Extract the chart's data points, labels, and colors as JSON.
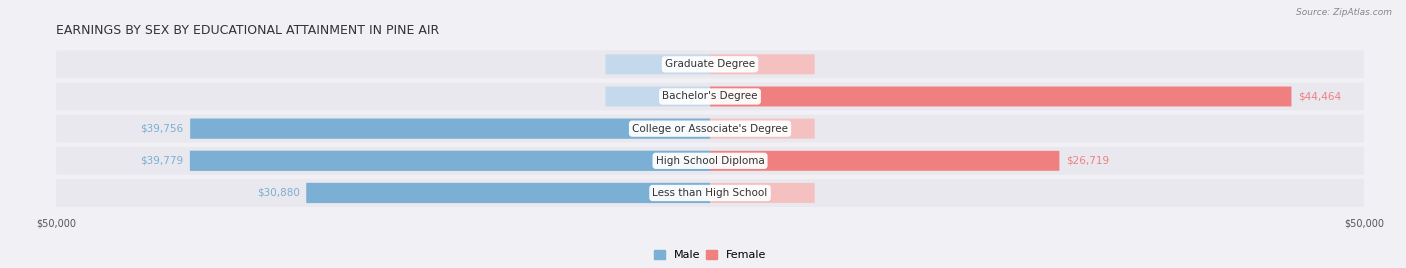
{
  "title": "EARNINGS BY SEX BY EDUCATIONAL ATTAINMENT IN PINE AIR",
  "source": "Source: ZipAtlas.com",
  "categories": [
    "Less than High School",
    "High School Diploma",
    "College or Associate's Degree",
    "Bachelor's Degree",
    "Graduate Degree"
  ],
  "male_values": [
    30880,
    39779,
    39756,
    0,
    0
  ],
  "female_values": [
    0,
    26719,
    0,
    44464,
    0
  ],
  "male_color": "#7bafd4",
  "female_color": "#f08080",
  "male_label_color": "#5a8fc4",
  "female_label_color": "#e06070",
  "male_light_color": "#c5d9ed",
  "female_light_color": "#f5c0c0",
  "max_value": 50000,
  "background_color": "#f0f0f5",
  "bar_bg_color": "#e8e8f0",
  "title_fontsize": 9,
  "label_fontsize": 7.5,
  "tick_fontsize": 7,
  "legend_fontsize": 8,
  "xlim": 50000
}
